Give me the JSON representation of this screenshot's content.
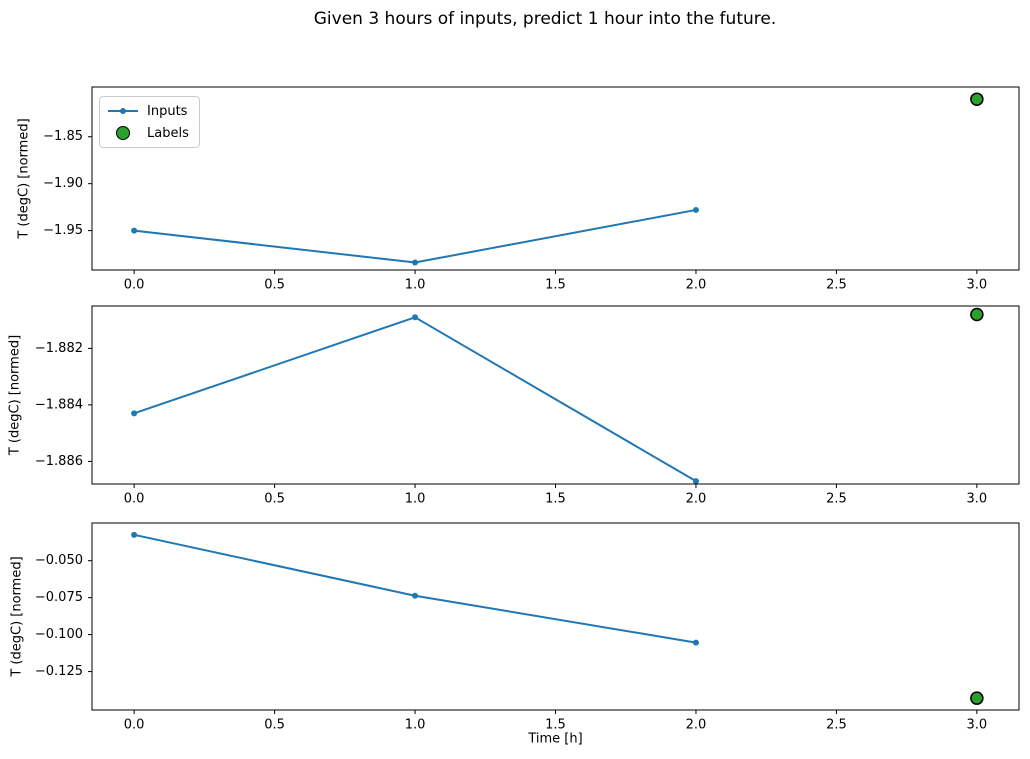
{
  "title": "Given 3 hours of inputs, predict 1 hour into the future.",
  "xlabel": "Time [h]",
  "colors": {
    "inputs_line": "#1f77b4",
    "labels_marker_fill": "#2ca02c",
    "marker_edge": "#000000",
    "axis": "#000000",
    "text": "#000000",
    "legend_border": "#cccccc"
  },
  "legend": {
    "position": "upper left",
    "items": [
      {
        "label": "Inputs",
        "icon": "line-dot-marker"
      },
      {
        "label": "Labels",
        "icon": "green-circle-marker"
      }
    ]
  },
  "chart_data": [
    {
      "type": "line",
      "ylabel": "T (degC) [normed]",
      "series": [
        {
          "name": "Inputs",
          "x": [
            0,
            1,
            2
          ],
          "y": [
            -1.95,
            -1.984,
            -1.928
          ]
        },
        {
          "name": "Labels",
          "x": [
            3
          ],
          "y": [
            -1.81
          ]
        }
      ],
      "xlim": [
        -0.15,
        3.15
      ],
      "ylim": [
        -1.992,
        -1.797
      ],
      "xticks": [
        0.0,
        0.5,
        1.0,
        1.5,
        2.0,
        2.5,
        3.0
      ],
      "xtick_labels": [
        "0.0",
        "0.5",
        "1.0",
        "1.5",
        "2.0",
        "2.5",
        "3.0"
      ],
      "yticks": [
        -1.85,
        -1.9,
        -1.95
      ],
      "ytick_labels": [
        "−1.85",
        "−1.90",
        "−1.95"
      ],
      "grid": false,
      "has_legend": true
    },
    {
      "type": "line",
      "ylabel": "T (degC) [normed]",
      "series": [
        {
          "name": "Inputs",
          "x": [
            0,
            1,
            2
          ],
          "y": [
            -1.8843,
            -1.8809,
            -1.8867
          ]
        },
        {
          "name": "Labels",
          "x": [
            3
          ],
          "y": [
            -1.8808
          ]
        }
      ],
      "xlim": [
        -0.15,
        3.15
      ],
      "ylim": [
        -1.8868,
        -1.8805
      ],
      "xticks": [
        0.0,
        0.5,
        1.0,
        1.5,
        2.0,
        2.5,
        3.0
      ],
      "xtick_labels": [
        "0.0",
        "0.5",
        "1.0",
        "1.5",
        "2.0",
        "2.5",
        "3.0"
      ],
      "yticks": [
        -1.882,
        -1.884,
        -1.886
      ],
      "ytick_labels": [
        "−1.882",
        "−1.884",
        "−1.886"
      ],
      "grid": false,
      "has_legend": false
    },
    {
      "type": "line",
      "ylabel": "T (degC) [normed]",
      "series": [
        {
          "name": "Inputs",
          "x": [
            0,
            1,
            2
          ],
          "y": [
            -0.0325,
            -0.0737,
            -0.1054
          ]
        },
        {
          "name": "Labels",
          "x": [
            3
          ],
          "y": [
            -0.143
          ]
        }
      ],
      "xlim": [
        -0.15,
        3.15
      ],
      "ylim": [
        -0.151,
        -0.0245
      ],
      "xticks": [
        0.0,
        0.5,
        1.0,
        1.5,
        2.0,
        2.5,
        3.0
      ],
      "xtick_labels": [
        "0.0",
        "0.5",
        "1.0",
        "1.5",
        "2.0",
        "2.5",
        "3.0"
      ],
      "yticks": [
        -0.05,
        -0.075,
        -0.1,
        -0.125
      ],
      "ytick_labels": [
        "−0.050",
        "−0.075",
        "−0.100",
        "−0.125"
      ],
      "grid": false,
      "has_legend": false
    }
  ]
}
